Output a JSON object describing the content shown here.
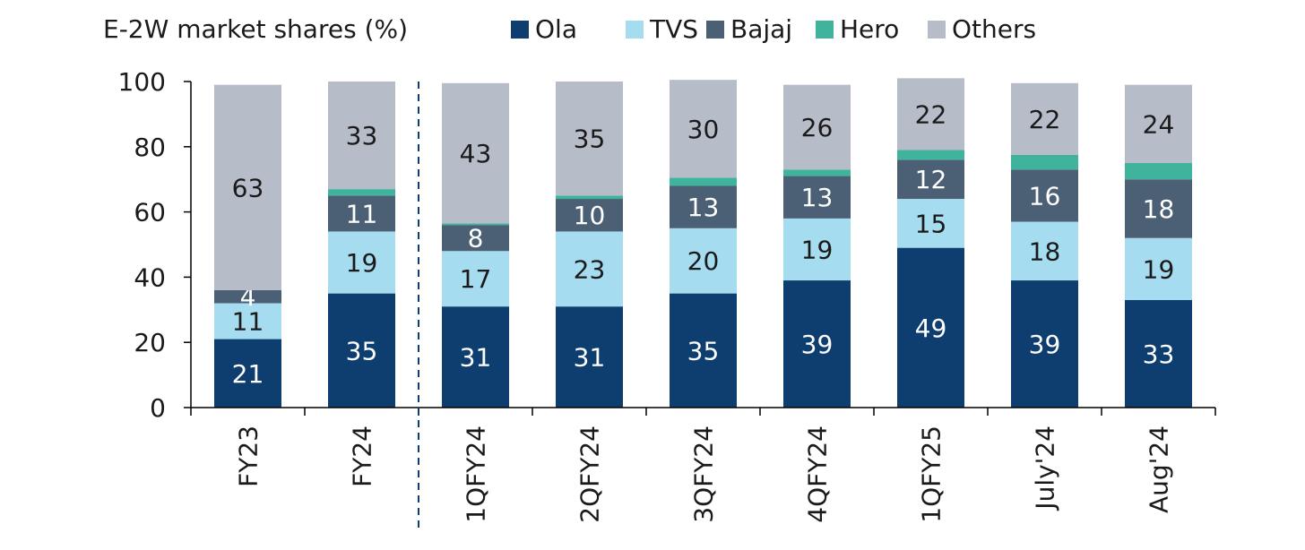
{
  "chart_data": {
    "type": "bar",
    "stacked": true,
    "title": "E-2W market shares (%)",
    "categories": [
      "FY23",
      "FY24",
      "1QFY24",
      "2QFY24",
      "3QFY24",
      "4QFY24",
      "1QFY25",
      "July'24",
      "Aug'24"
    ],
    "series": [
      {
        "name": "Ola",
        "color": "#0e3e6f",
        "values": [
          21,
          35,
          31,
          31,
          35,
          39,
          49,
          39,
          33
        ],
        "labels": [
          "21",
          "35",
          "31",
          "31",
          "35",
          "39",
          "49",
          "39",
          "33"
        ],
        "label_color": "#ffffff"
      },
      {
        "name": "TVS",
        "color": "#a6dcef",
        "values": [
          11,
          19,
          17,
          23,
          20,
          19,
          15,
          18,
          19
        ],
        "labels": [
          "11",
          "19",
          "17",
          "23",
          "20",
          "19",
          "15",
          "18",
          "19"
        ],
        "label_color": "#1a1a1a"
      },
      {
        "name": "Bajaj",
        "color": "#4b5f75",
        "values": [
          4,
          11,
          8,
          10,
          13,
          13,
          12,
          16,
          18
        ],
        "labels": [
          "4",
          "11",
          "8",
          "10",
          "13",
          "13",
          "12",
          "16",
          "18"
        ],
        "label_color": "#ffffff"
      },
      {
        "name": "Hero",
        "color": "#3fb39b",
        "values": [
          0,
          2,
          0.5,
          1,
          2.5,
          2,
          3,
          4.5,
          5
        ],
        "labels": [
          "",
          "",
          "",
          "",
          "",
          "",
          "",
          "",
          ""
        ],
        "label_color": "#ffffff"
      },
      {
        "name": "Others",
        "color": "#b7bcc9",
        "values": [
          63,
          33,
          43,
          35,
          30,
          26,
          22,
          22,
          24
        ],
        "labels": [
          "63",
          "33",
          "43",
          "35",
          "30",
          "26",
          "22",
          "22",
          "24"
        ],
        "label_color": "#1a1a1a"
      }
    ],
    "ylim": [
      0,
      100
    ],
    "yticks": [
      "0",
      "20",
      "40",
      "60",
      "80",
      "100"
    ],
    "xlabel": "",
    "ylabel": "",
    "legend_position": "top",
    "divider_after_category": "FY24"
  }
}
